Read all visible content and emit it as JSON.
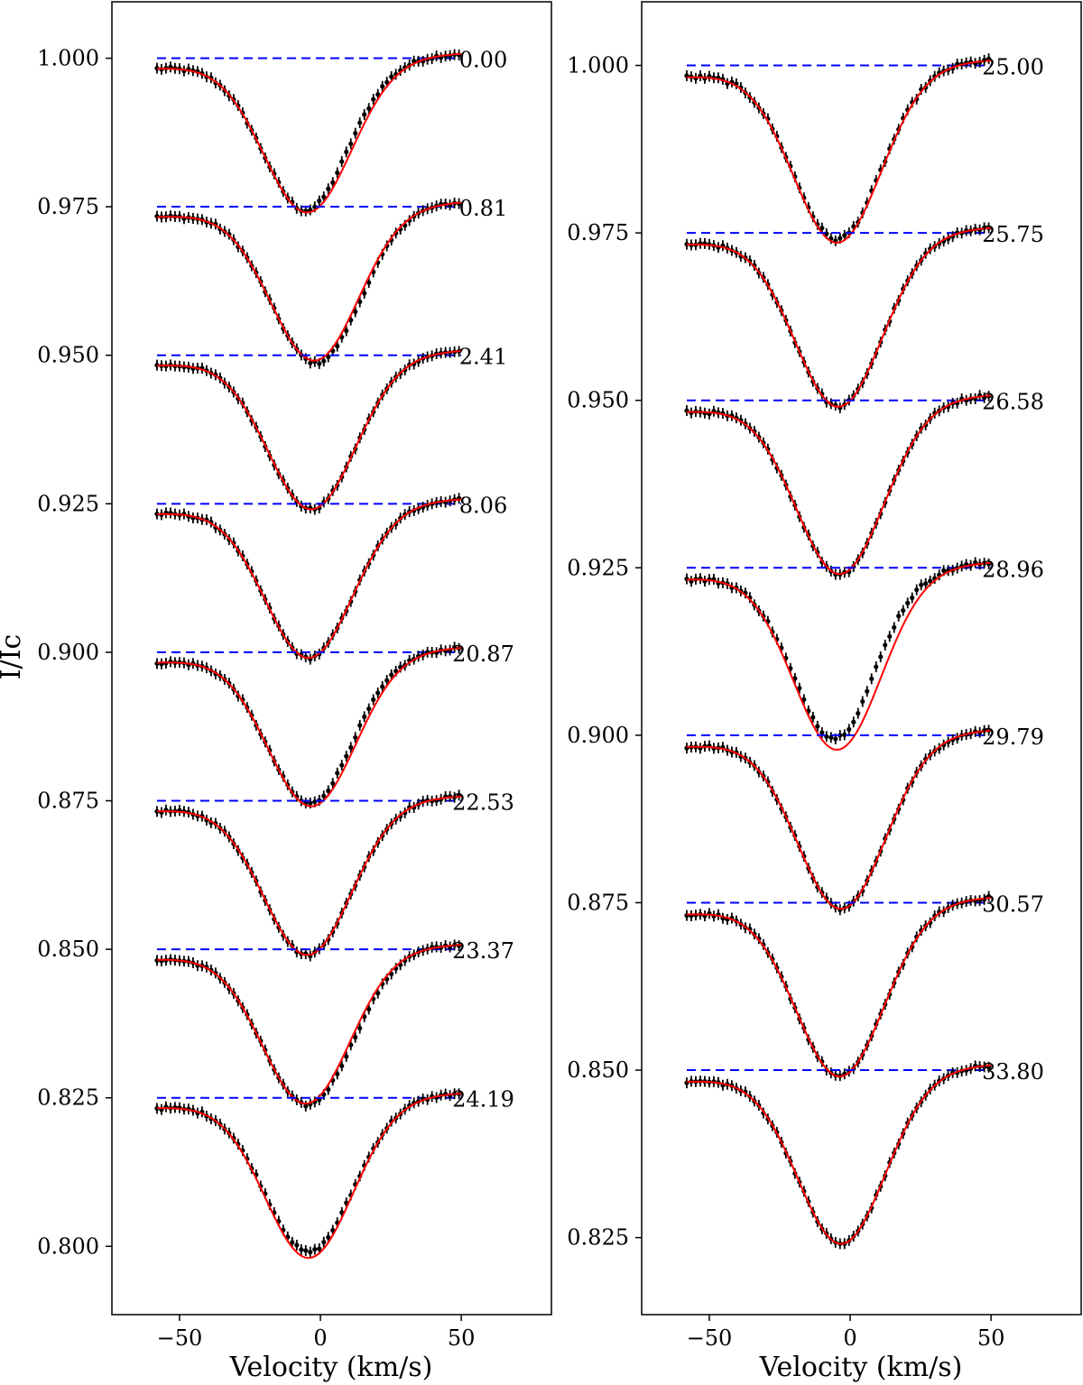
{
  "chart_data": [
    {
      "type": "line",
      "panel": "left",
      "xlabel": "Velocity (km/s)",
      "ylabel": "I/Ic",
      "xlim": [
        -74,
        82
      ],
      "ylim": [
        0.7885,
        1.0095
      ],
      "xticks": [
        -50,
        0,
        50
      ],
      "yticks": [
        0.8,
        0.825,
        0.85,
        0.875,
        0.9,
        0.925,
        0.95,
        0.975,
        1.0
      ],
      "ytick_labels": [
        "0.800",
        "0.825",
        "0.850",
        "0.875",
        "0.900",
        "0.925",
        "0.950",
        "0.975",
        "1.000"
      ],
      "xtick_labels": [
        "−50",
        "0",
        "50"
      ],
      "profile_depth": 0.025,
      "velocity_range": [
        -58,
        50
      ],
      "series": [
        {
          "phase": "0.00",
          "continuum": 1.0,
          "center": -4.5,
          "model_offset": 0.0,
          "asym": 0.0015,
          "noise": 0.0006
        },
        {
          "phase": "0.81",
          "continuum": 0.975,
          "center": -2.0,
          "model_offset": 0.0,
          "asym": -0.001,
          "noise": 0.0005
        },
        {
          "phase": "2.41",
          "continuum": 0.95,
          "center": -3.0,
          "model_offset": 0.0,
          "asym": 0.0,
          "noise": 0.0005
        },
        {
          "phase": "8.06",
          "continuum": 0.925,
          "center": -4.0,
          "model_offset": 0.0,
          "asym": 0.0,
          "noise": 0.0005
        },
        {
          "phase": "20.87",
          "continuum": 0.9,
          "center": -3.0,
          "model_offset": 0.0,
          "asym": 0.0015,
          "noise": 0.0005
        },
        {
          "phase": "22.53",
          "continuum": 0.875,
          "center": -4.5,
          "model_offset": 0.0,
          "asym": 0.0,
          "noise": 0.0005
        },
        {
          "phase": "23.37",
          "continuum": 0.85,
          "center": -5.0,
          "model_offset": 0.0,
          "asym": -0.001,
          "noise": 0.0005
        },
        {
          "phase": "24.19",
          "continuum": 0.825,
          "center": -4.0,
          "model_offset": -0.001,
          "asym": 0.0,
          "noise": 0.0005
        }
      ]
    },
    {
      "type": "line",
      "panel": "right",
      "xlabel": "Velocity (km/s)",
      "ylabel": "",
      "xlim": [
        -74,
        82
      ],
      "ylim": [
        0.8135,
        1.0095
      ],
      "xticks": [
        -50,
        0,
        50
      ],
      "yticks": [
        0.825,
        0.85,
        0.875,
        0.9,
        0.925,
        0.95,
        0.975,
        1.0
      ],
      "ytick_labels": [
        "0.825",
        "0.850",
        "0.875",
        "0.900",
        "0.925",
        "0.950",
        "0.975",
        "1.000"
      ],
      "xtick_labels": [
        "−50",
        "0",
        "50"
      ],
      "profile_depth": 0.025,
      "velocity_range": [
        -58,
        50
      ],
      "series": [
        {
          "phase": "25.00",
          "continuum": 1.0,
          "center": -4.5,
          "model_offset": -0.0005,
          "asym": 0.0,
          "noise": 0.0006
        },
        {
          "phase": "25.75",
          "continuum": 0.975,
          "center": -4.0,
          "model_offset": 0.0,
          "asym": 0.0,
          "noise": 0.0005
        },
        {
          "phase": "26.58",
          "continuum": 0.95,
          "center": -3.5,
          "model_offset": 0.0,
          "asym": 0.0,
          "noise": 0.0005
        },
        {
          "phase": "28.96",
          "continuum": 0.925,
          "center": -4.5,
          "model_offset": -0.0012,
          "asym": 0.0025,
          "noise": 0.0006
        },
        {
          "phase": "29.79",
          "continuum": 0.9,
          "center": -3.0,
          "model_offset": 0.0,
          "asym": 0.0,
          "noise": 0.0005
        },
        {
          "phase": "30.57",
          "continuum": 0.875,
          "center": -3.5,
          "model_offset": 0.0,
          "asym": 0.0,
          "noise": 0.0005
        },
        {
          "phase": "33.80",
          "continuum": 0.85,
          "center": -3.0,
          "model_offset": 0.0,
          "asym": 0.0,
          "noise": 0.0005
        }
      ]
    }
  ],
  "colors": {
    "continuum_line": "#0000ff",
    "model_line": "#ff0000",
    "observed": "#000000",
    "frame": "#000000"
  }
}
